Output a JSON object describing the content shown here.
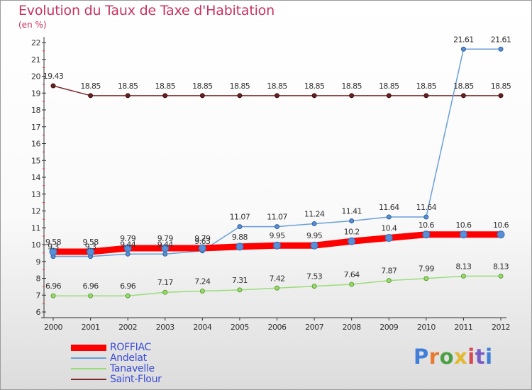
{
  "title": "Evolution du Taux de Taxe d'Habitation",
  "subtitle": "(en %)",
  "logo_text": "Proxiti",
  "chart_data": {
    "type": "line",
    "x": [
      "2000",
      "2001",
      "2002",
      "2003",
      "2004",
      "2005",
      "2006",
      "2007",
      "2008",
      "2009",
      "2010",
      "2011",
      "2012"
    ],
    "ylim": [
      6,
      22
    ],
    "yticks": [
      6,
      7,
      8,
      9,
      10,
      11,
      12,
      13,
      14,
      15,
      16,
      17,
      18,
      19,
      20,
      21,
      22
    ],
    "grid": false,
    "legend_position": "bottom-left",
    "series": [
      {
        "name": "ROFFIAC",
        "color": "#ff0000",
        "values": [
          9.58,
          9.58,
          9.79,
          9.79,
          9.79,
          9.88,
          9.95,
          9.95,
          10.2,
          10.4,
          10.6,
          10.6,
          10.6
        ],
        "labels": [
          "9.58",
          "9.58",
          "9.79",
          "9.79",
          "9.79",
          "9.88",
          "9.95",
          "9.95",
          "10.2",
          "10.4",
          "10.6",
          "10.6",
          "10.6"
        ]
      },
      {
        "name": "Andelat",
        "color": "#6a9fd8",
        "values": [
          9.3,
          9.3,
          9.44,
          9.44,
          9.63,
          11.07,
          11.07,
          11.24,
          11.41,
          11.64,
          11.64,
          21.61,
          21.61
        ],
        "labels": [
          "9.3",
          "9.3",
          "9.44",
          "9.44",
          "9.63",
          "11.07",
          "11.07",
          "11.24",
          "11.41",
          "11.64",
          "11.64",
          "21.61",
          "21.61"
        ]
      },
      {
        "name": "Tanavelle",
        "color": "#99dd77",
        "values": [
          6.96,
          6.96,
          6.96,
          7.17,
          7.24,
          7.31,
          7.42,
          7.53,
          7.64,
          7.87,
          7.99,
          8.13,
          8.13
        ],
        "labels": [
          "6.96",
          "6.96",
          "6.96",
          "7.17",
          "7.24",
          "7.31",
          "7.42",
          "7.53",
          "7.64",
          "7.87",
          "7.99",
          "8.13",
          "8.13"
        ]
      },
      {
        "name": "Saint-Flour",
        "color": "#7a2a2a",
        "values": [
          19.43,
          18.85,
          18.85,
          18.85,
          18.85,
          18.85,
          18.85,
          18.85,
          18.85,
          18.85,
          18.85,
          18.85,
          18.85
        ],
        "labels": [
          "19.43",
          "18.85",
          "18.85",
          "18.85",
          "18.85",
          "18.85",
          "18.85",
          "18.85",
          "18.85",
          "18.85",
          "18.85",
          "18.85",
          "18.85"
        ]
      }
    ]
  }
}
